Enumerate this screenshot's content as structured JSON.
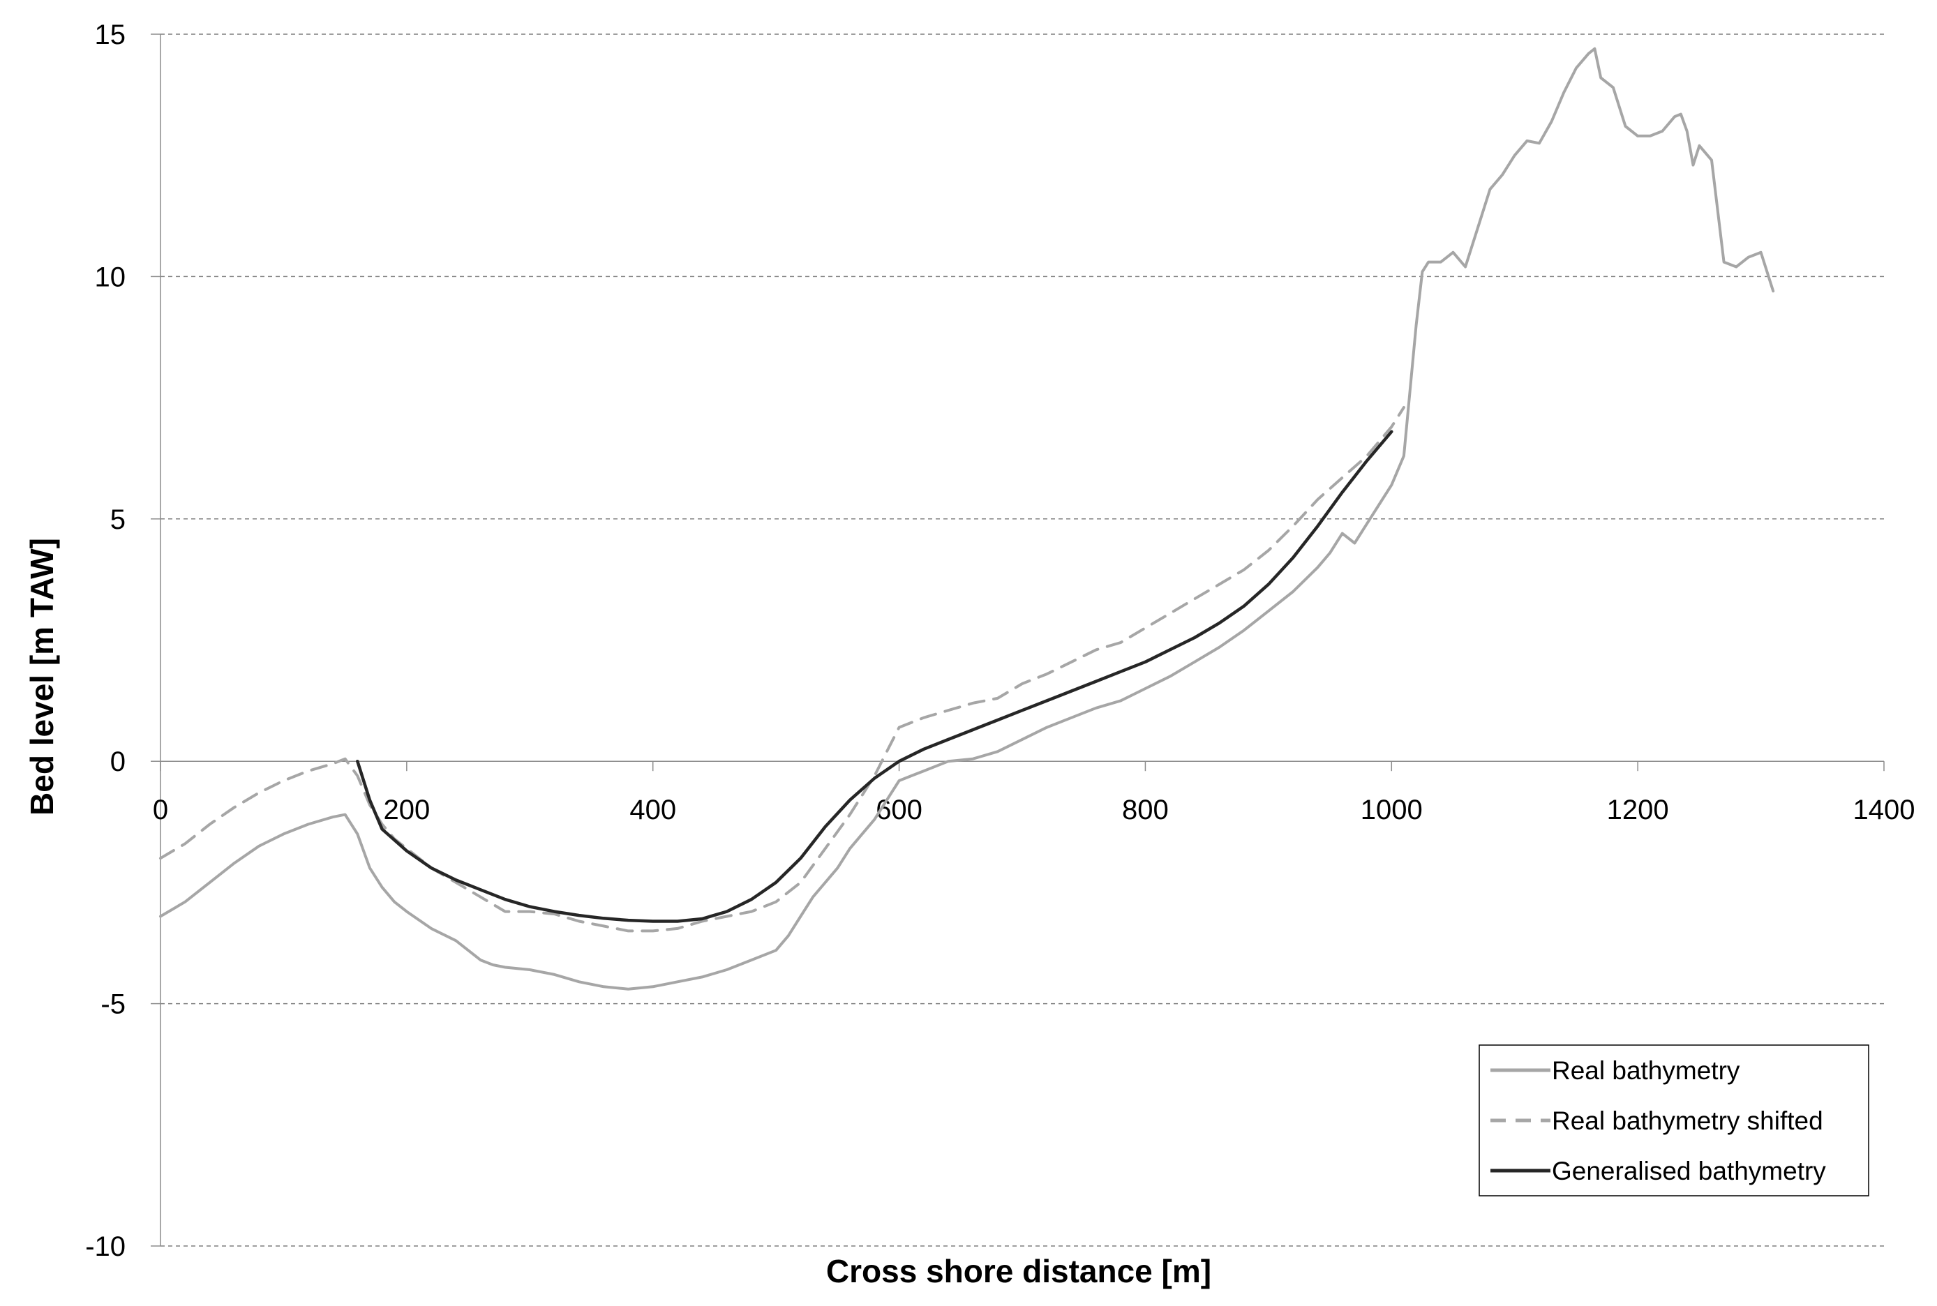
{
  "chart_data": {
    "type": "line",
    "title": "",
    "xlabel": "Cross shore distance [m]",
    "ylabel": "Bed level [m TAW]",
    "xlim": [
      0,
      1400
    ],
    "ylim": [
      -10,
      15
    ],
    "x_ticks": [
      0,
      200,
      400,
      600,
      800,
      1000,
      1200,
      1400
    ],
    "y_ticks": [
      -10,
      -5,
      0,
      5,
      10,
      15
    ],
    "x_tick_labels": [
      "0",
      "200",
      "400",
      "600",
      "800",
      "1000",
      "1200",
      "1400"
    ],
    "y_tick_labels": [
      "-10",
      "-5",
      "0",
      "5",
      "10",
      "15"
    ],
    "grid": "horizontal dashed",
    "legend_position": "bottom-right",
    "series": [
      {
        "name": "Real bathymetry",
        "color": "#a6a6a6",
        "style": "solid",
        "x": [
          0,
          20,
          40,
          60,
          80,
          100,
          120,
          140,
          150,
          160,
          170,
          180,
          190,
          200,
          220,
          240,
          260,
          270,
          280,
          300,
          320,
          340,
          360,
          380,
          400,
          420,
          440,
          460,
          480,
          500,
          510,
          520,
          530,
          540,
          550,
          560,
          570,
          580,
          590,
          600,
          610,
          620,
          640,
          660,
          680,
          700,
          720,
          740,
          760,
          780,
          800,
          820,
          840,
          860,
          880,
          900,
          920,
          940,
          950,
          960,
          970,
          980,
          990,
          1000,
          1010,
          1020,
          1025,
          1030,
          1040,
          1050,
          1060,
          1070,
          1080,
          1090,
          1100,
          1110,
          1120,
          1130,
          1140,
          1150,
          1160,
          1165,
          1170,
          1180,
          1190,
          1200,
          1210,
          1220,
          1230,
          1235,
          1240,
          1245,
          1250,
          1260,
          1270,
          1280,
          1290,
          1300,
          1310
        ],
        "y": [
          -3.2,
          -2.9,
          -2.5,
          -2.1,
          -1.75,
          -1.5,
          -1.3,
          -1.15,
          -1.1,
          -1.5,
          -2.2,
          -2.6,
          -2.9,
          -3.1,
          -3.45,
          -3.7,
          -4.1,
          -4.2,
          -4.25,
          -4.3,
          -4.4,
          -4.55,
          -4.65,
          -4.7,
          -4.65,
          -4.55,
          -4.45,
          -4.3,
          -4.1,
          -3.9,
          -3.6,
          -3.2,
          -2.8,
          -2.5,
          -2.2,
          -1.8,
          -1.5,
          -1.2,
          -0.8,
          -0.4,
          -0.3,
          -0.2,
          0.0,
          0.05,
          0.2,
          0.45,
          0.7,
          0.9,
          1.1,
          1.25,
          1.5,
          1.75,
          2.05,
          2.35,
          2.7,
          3.1,
          3.5,
          4.0,
          4.3,
          4.7,
          4.5,
          4.9,
          5.3,
          5.7,
          6.3,
          9.0,
          10.1,
          10.3,
          10.3,
          10.5,
          10.2,
          11.0,
          11.8,
          12.1,
          12.5,
          12.8,
          12.75,
          13.2,
          13.8,
          14.3,
          14.6,
          14.7,
          14.1,
          13.9,
          13.1,
          12.9,
          12.9,
          13.0,
          13.3,
          13.35,
          13.0,
          12.3,
          12.7,
          12.4,
          10.3,
          10.2,
          10.4,
          10.5,
          9.7
        ]
      },
      {
        "name": "Real bathymetry shifted",
        "color": "#a6a6a6",
        "style": "dashed",
        "x": [
          0,
          20,
          40,
          60,
          80,
          100,
          120,
          140,
          150,
          160,
          170,
          180,
          190,
          200,
          220,
          240,
          260,
          280,
          300,
          320,
          340,
          360,
          380,
          400,
          420,
          440,
          460,
          480,
          500,
          520,
          540,
          560,
          580,
          590,
          600,
          620,
          640,
          660,
          680,
          700,
          720,
          740,
          760,
          780,
          800,
          820,
          840,
          860,
          880,
          900,
          920,
          940,
          960,
          980,
          1000,
          1010
        ],
        "y": [
          -2.0,
          -1.7,
          -1.3,
          -0.95,
          -0.65,
          -0.4,
          -0.2,
          -0.05,
          0.05,
          -0.3,
          -0.9,
          -1.3,
          -1.6,
          -1.8,
          -2.2,
          -2.5,
          -2.8,
          -3.1,
          -3.1,
          -3.15,
          -3.3,
          -3.4,
          -3.5,
          -3.5,
          -3.45,
          -3.3,
          -3.2,
          -3.1,
          -2.9,
          -2.5,
          -1.8,
          -1.1,
          -0.3,
          0.2,
          0.7,
          0.9,
          1.05,
          1.2,
          1.3,
          1.6,
          1.8,
          2.05,
          2.3,
          2.45,
          2.75,
          3.05,
          3.35,
          3.65,
          3.95,
          4.35,
          4.85,
          5.4,
          5.85,
          6.3,
          6.9,
          7.3
        ]
      },
      {
        "name": "Generalised bathymetry",
        "color": "#262626",
        "style": "solid",
        "x": [
          160,
          170,
          180,
          200,
          220,
          240,
          260,
          280,
          300,
          320,
          340,
          360,
          380,
          400,
          420,
          440,
          460,
          480,
          500,
          520,
          540,
          560,
          580,
          600,
          620,
          640,
          660,
          680,
          700,
          720,
          740,
          760,
          780,
          800,
          820,
          840,
          860,
          880,
          900,
          920,
          940,
          960,
          980,
          1000
        ],
        "y": [
          0.0,
          -0.8,
          -1.4,
          -1.85,
          -2.2,
          -2.45,
          -2.65,
          -2.85,
          -3.0,
          -3.1,
          -3.18,
          -3.24,
          -3.28,
          -3.3,
          -3.3,
          -3.25,
          -3.1,
          -2.85,
          -2.5,
          -2.0,
          -1.35,
          -0.8,
          -0.35,
          0.0,
          0.25,
          0.45,
          0.65,
          0.85,
          1.05,
          1.25,
          1.45,
          1.65,
          1.85,
          2.05,
          2.3,
          2.55,
          2.85,
          3.2,
          3.65,
          4.2,
          4.85,
          5.55,
          6.2,
          6.8
        ]
      }
    ]
  }
}
